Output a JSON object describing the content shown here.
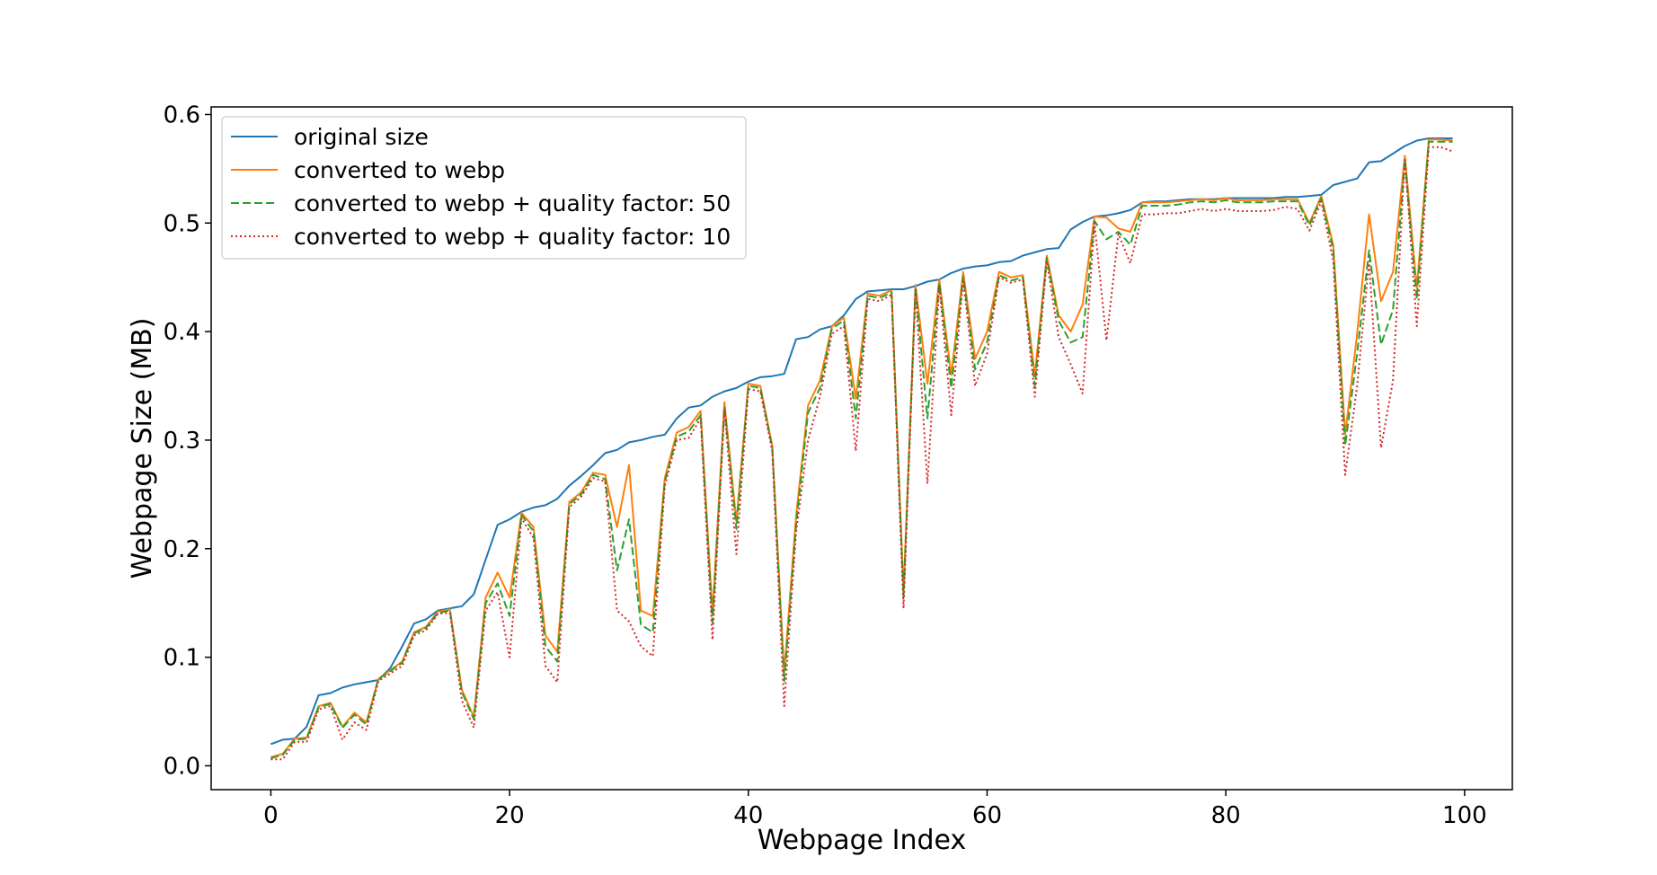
{
  "chart_data": {
    "type": "line",
    "xlabel": "Webpage Index",
    "ylabel": "Webpage Size (MB)",
    "xlim": [
      -5,
      104
    ],
    "ylim": [
      -0.022,
      0.607
    ],
    "xticks": [
      0,
      20,
      40,
      60,
      80,
      100
    ],
    "yticks": [
      0.0,
      0.1,
      0.2,
      0.3,
      0.4,
      0.5,
      0.6
    ],
    "xtick_labels": [
      "0",
      "20",
      "40",
      "60",
      "80",
      "100"
    ],
    "ytick_labels": [
      "0.0",
      "0.1",
      "0.2",
      "0.3",
      "0.4",
      "0.5",
      "0.6"
    ],
    "grid": false,
    "legend_position": "top-left",
    "series": [
      {
        "name": "original size",
        "color": "#1f77b4",
        "style": "solid",
        "values": [
          0.02,
          0.024,
          0.025,
          0.036,
          0.065,
          0.067,
          0.072,
          0.075,
          0.077,
          0.079,
          0.09,
          0.11,
          0.131,
          0.135,
          0.143,
          0.145,
          0.147,
          0.158,
          0.19,
          0.222,
          0.227,
          0.234,
          0.238,
          0.24,
          0.246,
          0.258,
          0.267,
          0.277,
          0.288,
          0.291,
          0.298,
          0.3,
          0.303,
          0.305,
          0.32,
          0.33,
          0.332,
          0.34,
          0.345,
          0.348,
          0.354,
          0.358,
          0.359,
          0.361,
          0.393,
          0.395,
          0.402,
          0.405,
          0.415,
          0.43,
          0.437,
          0.438,
          0.439,
          0.439,
          0.442,
          0.446,
          0.448,
          0.454,
          0.458,
          0.46,
          0.461,
          0.464,
          0.465,
          0.47,
          0.473,
          0.476,
          0.477,
          0.494,
          0.501,
          0.506,
          0.507,
          0.509,
          0.512,
          0.519,
          0.52,
          0.52,
          0.521,
          0.522,
          0.522,
          0.522,
          0.523,
          0.523,
          0.523,
          0.523,
          0.523,
          0.524,
          0.524,
          0.525,
          0.526,
          0.535,
          0.538,
          0.541,
          0.556,
          0.557,
          0.564,
          0.571,
          0.576,
          0.578,
          0.578,
          0.578
        ]
      },
      {
        "name": "converted to webp",
        "color": "#ff7f0e",
        "style": "solid",
        "values": [
          0.008,
          0.011,
          0.025,
          0.026,
          0.055,
          0.058,
          0.036,
          0.049,
          0.04,
          0.08,
          0.088,
          0.096,
          0.123,
          0.128,
          0.142,
          0.144,
          0.07,
          0.045,
          0.155,
          0.178,
          0.155,
          0.233,
          0.22,
          0.12,
          0.105,
          0.243,
          0.252,
          0.27,
          0.268,
          0.22,
          0.277,
          0.143,
          0.138,
          0.265,
          0.307,
          0.312,
          0.327,
          0.14,
          0.335,
          0.225,
          0.352,
          0.35,
          0.295,
          0.085,
          0.23,
          0.332,
          0.355,
          0.405,
          0.413,
          0.338,
          0.435,
          0.433,
          0.438,
          0.16,
          0.443,
          0.352,
          0.448,
          0.36,
          0.455,
          0.375,
          0.4,
          0.455,
          0.45,
          0.452,
          0.36,
          0.47,
          0.415,
          0.4,
          0.425,
          0.506,
          0.505,
          0.495,
          0.492,
          0.519,
          0.519,
          0.519,
          0.52,
          0.521,
          0.522,
          0.521,
          0.523,
          0.521,
          0.521,
          0.521,
          0.522,
          0.522,
          0.522,
          0.5,
          0.525,
          0.48,
          0.305,
          0.398,
          0.508,
          0.428,
          0.455,
          0.562,
          0.44,
          0.577,
          0.577,
          0.576
        ]
      },
      {
        "name": "converted to webp + quality factor: 50",
        "color": "#2ca02c",
        "style": "dashed",
        "values": [
          0.007,
          0.01,
          0.024,
          0.025,
          0.054,
          0.057,
          0.035,
          0.047,
          0.038,
          0.08,
          0.087,
          0.095,
          0.122,
          0.127,
          0.141,
          0.143,
          0.068,
          0.043,
          0.15,
          0.168,
          0.138,
          0.231,
          0.216,
          0.11,
          0.096,
          0.241,
          0.25,
          0.268,
          0.264,
          0.18,
          0.227,
          0.13,
          0.123,
          0.262,
          0.303,
          0.308,
          0.323,
          0.132,
          0.331,
          0.218,
          0.35,
          0.348,
          0.293,
          0.078,
          0.222,
          0.325,
          0.348,
          0.403,
          0.41,
          0.32,
          0.433,
          0.431,
          0.436,
          0.155,
          0.441,
          0.32,
          0.445,
          0.348,
          0.451,
          0.365,
          0.39,
          0.452,
          0.447,
          0.45,
          0.35,
          0.468,
          0.41,
          0.39,
          0.395,
          0.502,
          0.485,
          0.492,
          0.48,
          0.516,
          0.516,
          0.516,
          0.517,
          0.519,
          0.52,
          0.519,
          0.521,
          0.519,
          0.519,
          0.519,
          0.52,
          0.52,
          0.52,
          0.498,
          0.523,
          0.475,
          0.295,
          0.38,
          0.475,
          0.388,
          0.42,
          0.558,
          0.43,
          0.575,
          0.575,
          0.575
        ]
      },
      {
        "name": "converted to webp + quality factor: 10",
        "color": "#d62728",
        "style": "dotted",
        "values": [
          0.006,
          0.006,
          0.022,
          0.022,
          0.052,
          0.055,
          0.024,
          0.04,
          0.033,
          0.078,
          0.085,
          0.092,
          0.12,
          0.125,
          0.14,
          0.141,
          0.06,
          0.035,
          0.143,
          0.16,
          0.1,
          0.228,
          0.21,
          0.092,
          0.077,
          0.238,
          0.248,
          0.265,
          0.262,
          0.143,
          0.133,
          0.11,
          0.101,
          0.258,
          0.3,
          0.302,
          0.32,
          0.116,
          0.328,
          0.195,
          0.347,
          0.345,
          0.29,
          0.055,
          0.215,
          0.3,
          0.34,
          0.398,
          0.405,
          0.29,
          0.43,
          0.428,
          0.434,
          0.145,
          0.438,
          0.26,
          0.442,
          0.323,
          0.448,
          0.35,
          0.38,
          0.45,
          0.445,
          0.448,
          0.34,
          0.465,
          0.395,
          0.37,
          0.343,
          0.5,
          0.392,
          0.49,
          0.463,
          0.508,
          0.508,
          0.509,
          0.509,
          0.511,
          0.513,
          0.511,
          0.513,
          0.511,
          0.511,
          0.511,
          0.512,
          0.515,
          0.513,
          0.493,
          0.52,
          0.465,
          0.268,
          0.35,
          0.465,
          0.293,
          0.355,
          0.56,
          0.405,
          0.57,
          0.57,
          0.566
        ]
      }
    ]
  }
}
